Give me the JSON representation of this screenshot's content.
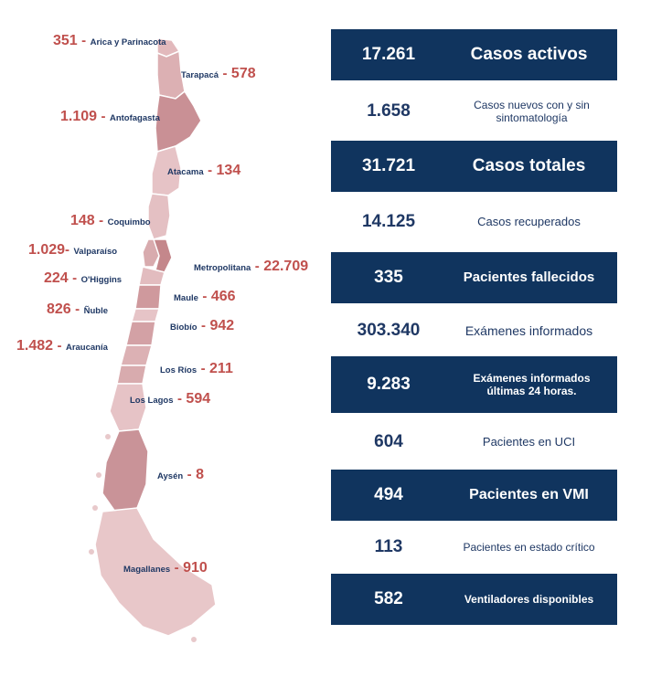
{
  "regions": [
    {
      "id": "arica",
      "value": "351",
      "name": "Arica y Parinacota"
    },
    {
      "id": "tarapaca",
      "value": "578",
      "name": "Tarapacá"
    },
    {
      "id": "antofagasta",
      "value": "1.109",
      "name": "Antofagasta"
    },
    {
      "id": "atacama",
      "value": "134",
      "name": "Atacama"
    },
    {
      "id": "coquimbo",
      "value": "148",
      "name": "Coquimbo"
    },
    {
      "id": "valparaiso",
      "value": "1.029",
      "name": "Valparaíso"
    },
    {
      "id": "metropolitana",
      "value": "22.709",
      "name": "Metropolitana"
    },
    {
      "id": "ohiggins",
      "value": "224",
      "name": "O'Higgins"
    },
    {
      "id": "maule",
      "value": "466",
      "name": "Maule"
    },
    {
      "id": "nuble",
      "value": "826",
      "name": "Ñuble"
    },
    {
      "id": "biobio",
      "value": "942",
      "name": "Biobío"
    },
    {
      "id": "araucania",
      "value": "1.482",
      "name": "Araucanía"
    },
    {
      "id": "losrios",
      "value": "211",
      "name": "Los Ríos"
    },
    {
      "id": "loslagos",
      "value": "594",
      "name": "Los Lagos"
    },
    {
      "id": "aysen",
      "value": "8",
      "name": "Aysén"
    },
    {
      "id": "magallanes",
      "value": "910",
      "name": "Magallanes"
    }
  ],
  "stats": [
    {
      "value": "17.261",
      "label": "Casos activos",
      "style": "dark"
    },
    {
      "value": "1.658",
      "label": "Casos nuevos con y sin sintomatología",
      "style": "light"
    },
    {
      "value": "31.721",
      "label": "Casos totales",
      "style": "dark"
    },
    {
      "value": "14.125",
      "label": "Casos recuperados",
      "style": "light"
    },
    {
      "value": "335",
      "label": "Pacientes fallecidos",
      "style": "dark"
    },
    {
      "value": "303.340",
      "label": "Exámenes informados",
      "style": "light"
    },
    {
      "value": "9.283",
      "label": "Exámenes informados últimas 24 horas.",
      "style": "dark"
    },
    {
      "value": "604",
      "label": "Pacientes en UCI",
      "style": "light"
    },
    {
      "value": "494",
      "label": "Pacientes en VMI",
      "style": "dark"
    },
    {
      "value": "113",
      "label": "Pacientes en estado crítico",
      "style": "light"
    },
    {
      "value": "582",
      "label": "Ventiladores disponibles",
      "style": "dark"
    }
  ],
  "colors": {
    "panel_dark": "#10345e",
    "value_red": "#c0504d",
    "region_text": "#1f3864",
    "map_light": "#e8c5c7",
    "map_mid": "#d6a5a8",
    "map_dark": "#c4878b"
  }
}
